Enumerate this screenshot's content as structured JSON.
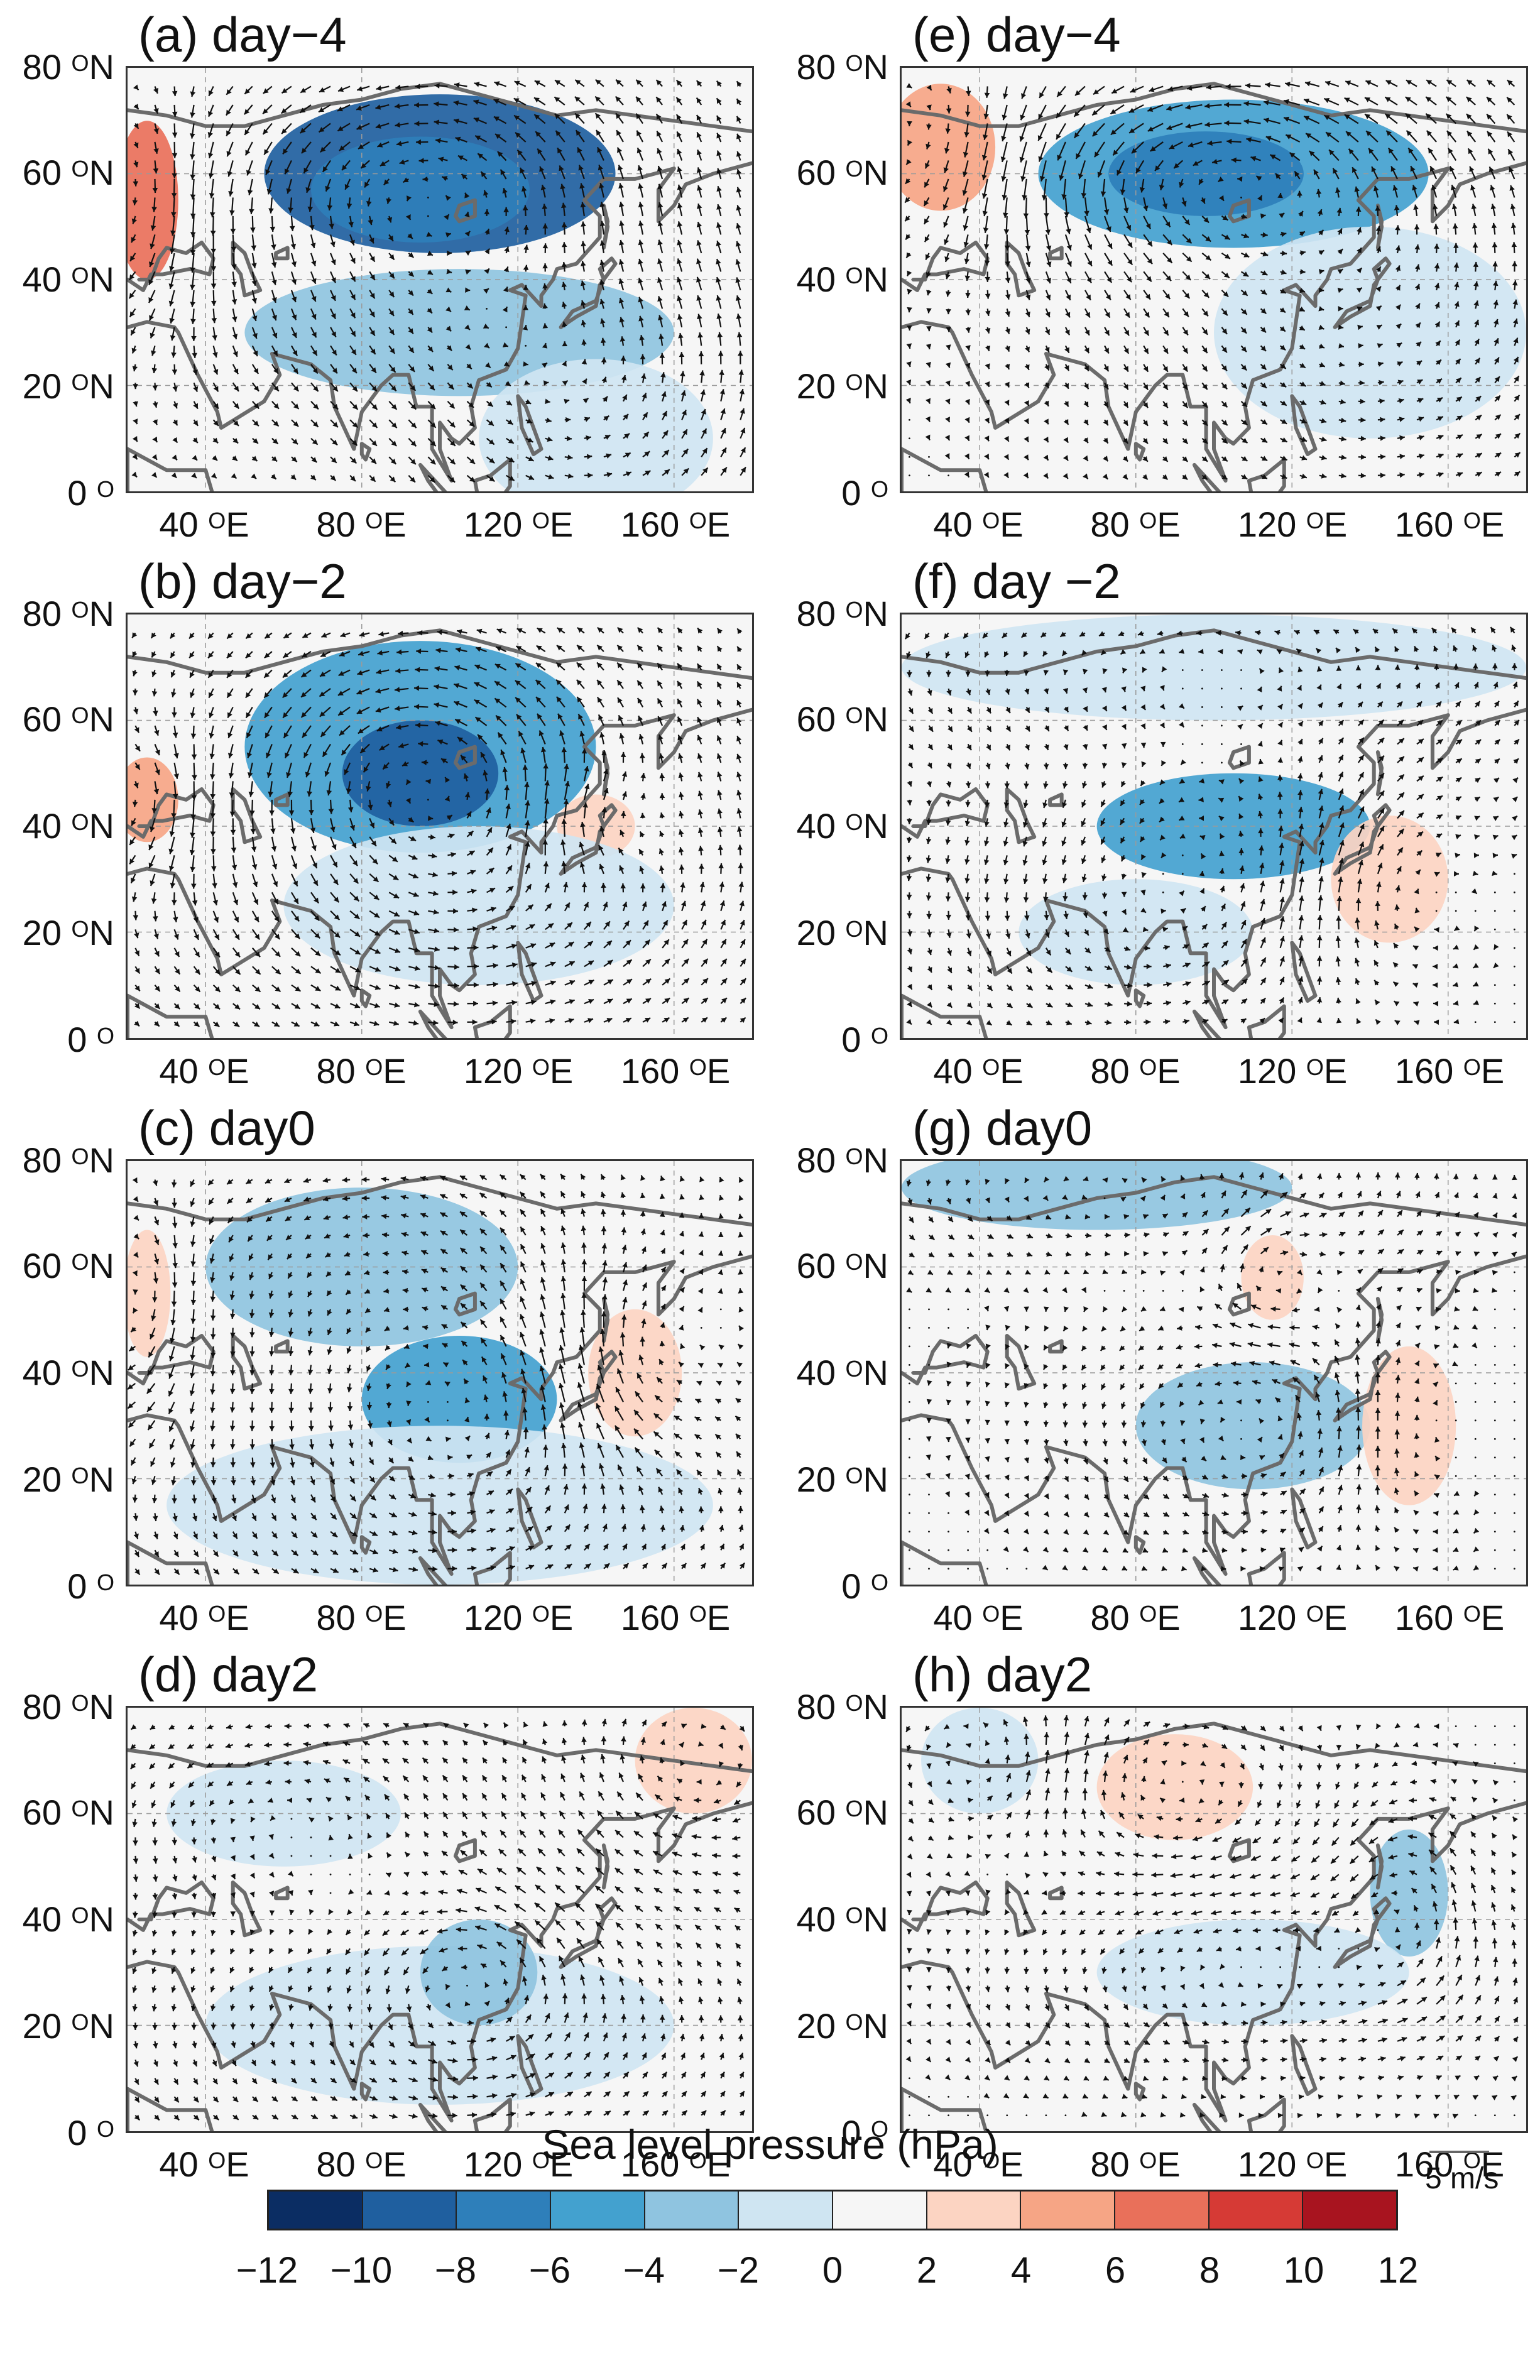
{
  "figure": {
    "colorbar": {
      "title": "Sea level pressure (hPa)",
      "ticks": [
        "−12",
        "−10",
        "−8",
        "−6",
        "−4",
        "−2",
        "0",
        "2",
        "4",
        "6",
        "8",
        "10",
        "12"
      ],
      "colors": [
        "#0b2d63",
        "#1f5f9f",
        "#2e7fba",
        "#43a1cf",
        "#8fc4e0",
        "#cfe5f2",
        "#f6f6f6",
        "#fcd4c2",
        "#f6a585",
        "#e9705a",
        "#d63a35",
        "#a8141f"
      ]
    },
    "reference_vector": {
      "label": "5 m/s"
    },
    "colors": {
      "land": "#6b6b6b",
      "wind": "#111111",
      "grid": "#9a9a9a",
      "neutral": "#f6f6f6"
    }
  },
  "axes": {
    "y_labels": [
      {
        "num": "80",
        "unit": "N"
      },
      {
        "num": "60",
        "unit": "N"
      },
      {
        "num": "40",
        "unit": "N"
      },
      {
        "num": "20",
        "unit": "N"
      },
      {
        "num": "0",
        "unit": ""
      }
    ],
    "x_labels": [
      {
        "num": "40",
        "unit": "E"
      },
      {
        "num": "80",
        "unit": "E"
      },
      {
        "num": "120",
        "unit": "E"
      },
      {
        "num": "160",
        "unit": "E"
      }
    ],
    "degree_symbol": "O"
  },
  "panels": [
    {
      "id": "a",
      "title": "(a) day−4",
      "anomalies": [
        {
          "lon": 100,
          "lat": 60,
          "rx": 45,
          "ry": 15,
          "level": 1
        },
        {
          "lon": 95,
          "lat": 57,
          "rx": 28,
          "ry": 10,
          "level": 2
        },
        {
          "lon": 25,
          "lat": 55,
          "rx": 8,
          "ry": 15,
          "level": 9
        },
        {
          "lon": 105,
          "lat": 30,
          "rx": 55,
          "ry": 12,
          "level": 4
        },
        {
          "lon": 140,
          "lat": 10,
          "rx": 30,
          "ry": 15,
          "level": 5
        }
      ]
    },
    {
      "id": "e",
      "title": "(e) day−4",
      "anomalies": [
        {
          "lon": 105,
          "lat": 60,
          "rx": 50,
          "ry": 14,
          "level": 3
        },
        {
          "lon": 98,
          "lat": 60,
          "rx": 25,
          "ry": 8,
          "level": 2
        },
        {
          "lon": 30,
          "lat": 65,
          "rx": 14,
          "ry": 12,
          "level": 8
        },
        {
          "lon": 140,
          "lat": 30,
          "rx": 40,
          "ry": 20,
          "level": 5
        }
      ]
    },
    {
      "id": "b",
      "title": "(b) day−2",
      "anomalies": [
        {
          "lon": 95,
          "lat": 55,
          "rx": 45,
          "ry": 20,
          "level": 3
        },
        {
          "lon": 95,
          "lat": 50,
          "rx": 20,
          "ry": 10,
          "level": 1
        },
        {
          "lon": 25,
          "lat": 45,
          "rx": 8,
          "ry": 8,
          "level": 8
        },
        {
          "lon": 140,
          "lat": 40,
          "rx": 10,
          "ry": 6,
          "level": 7
        },
        {
          "lon": 110,
          "lat": 25,
          "rx": 50,
          "ry": 15,
          "level": 5
        }
      ]
    },
    {
      "id": "f",
      "title": "(f) day −2",
      "anomalies": [
        {
          "lon": 100,
          "lat": 70,
          "rx": 80,
          "ry": 10,
          "level": 5
        },
        {
          "lon": 105,
          "lat": 40,
          "rx": 35,
          "ry": 10,
          "level": 3
        },
        {
          "lon": 145,
          "lat": 30,
          "rx": 15,
          "ry": 12,
          "level": 7
        },
        {
          "lon": 80,
          "lat": 20,
          "rx": 30,
          "ry": 10,
          "level": 5
        }
      ]
    },
    {
      "id": "c",
      "title": "(c) day0",
      "anomalies": [
        {
          "lon": 80,
          "lat": 60,
          "rx": 40,
          "ry": 15,
          "level": 4
        },
        {
          "lon": 105,
          "lat": 35,
          "rx": 25,
          "ry": 12,
          "level": 3
        },
        {
          "lon": 150,
          "lat": 40,
          "rx": 12,
          "ry": 12,
          "level": 7
        },
        {
          "lon": 25,
          "lat": 55,
          "rx": 6,
          "ry": 12,
          "level": 7
        },
        {
          "lon": 100,
          "lat": 15,
          "rx": 70,
          "ry": 15,
          "level": 5
        }
      ]
    },
    {
      "id": "g",
      "title": "(g) day0",
      "anomalies": [
        {
          "lon": 70,
          "lat": 75,
          "rx": 50,
          "ry": 8,
          "level": 4
        },
        {
          "lon": 110,
          "lat": 30,
          "rx": 30,
          "ry": 12,
          "level": 4
        },
        {
          "lon": 150,
          "lat": 30,
          "rx": 12,
          "ry": 15,
          "level": 7
        },
        {
          "lon": 115,
          "lat": 58,
          "rx": 8,
          "ry": 8,
          "level": 7
        }
      ]
    },
    {
      "id": "d",
      "title": "(d) day2",
      "anomalies": [
        {
          "lon": 100,
          "lat": 20,
          "rx": 60,
          "ry": 15,
          "level": 5
        },
        {
          "lon": 60,
          "lat": 60,
          "rx": 30,
          "ry": 10,
          "level": 5
        },
        {
          "lon": 165,
          "lat": 70,
          "rx": 15,
          "ry": 10,
          "level": 7
        },
        {
          "lon": 110,
          "lat": 30,
          "rx": 15,
          "ry": 10,
          "level": 4
        }
      ]
    },
    {
      "id": "h",
      "title": "(h) day2",
      "anomalies": [
        {
          "lon": 90,
          "lat": 65,
          "rx": 20,
          "ry": 10,
          "level": 7
        },
        {
          "lon": 150,
          "lat": 45,
          "rx": 10,
          "ry": 12,
          "level": 4
        },
        {
          "lon": 110,
          "lat": 30,
          "rx": 40,
          "ry": 10,
          "level": 5
        },
        {
          "lon": 40,
          "lat": 70,
          "rx": 15,
          "ry": 10,
          "level": 5
        }
      ]
    }
  ]
}
